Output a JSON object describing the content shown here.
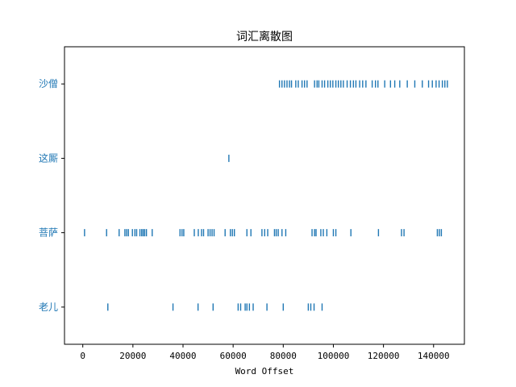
{
  "chart_data": {
    "type": "scatter",
    "title": "词汇离散图",
    "xlabel": "Word Offset",
    "ylabel": "",
    "xlim": [
      -7300,
      152300
    ],
    "ylim": [
      -0.5,
      3.5
    ],
    "xticks": [
      0,
      20000,
      40000,
      60000,
      80000,
      100000,
      120000,
      140000
    ],
    "xtick_labels": [
      "0",
      "20000",
      "40000",
      "60000",
      "80000",
      "100000",
      "120000",
      "140000"
    ],
    "grid": false,
    "marker": "|",
    "color": "#1f77b4",
    "series": [
      {
        "name": "沙僧",
        "level": 3,
        "x": [
          78500,
          79500,
          80500,
          81500,
          82500,
          83300,
          85000,
          86000,
          87500,
          88500,
          89500,
          92500,
          93500,
          94200,
          95500,
          96500,
          97800,
          98800,
          99800,
          101000,
          102000,
          103000,
          104000,
          105500,
          106800,
          108000,
          109000,
          110500,
          111700,
          113000,
          115500,
          116800,
          117800,
          120500,
          122800,
          124500,
          126500,
          129500,
          132500,
          135500,
          138000,
          139500,
          141000,
          142200,
          143500,
          144500,
          145500
        ]
      },
      {
        "name": "这厮",
        "level": 2,
        "x": [
          58300
        ]
      },
      {
        "name": "菩萨",
        "level": 1,
        "x": [
          700,
          9500,
          14500,
          16800,
          17500,
          18200,
          19800,
          20800,
          21500,
          22800,
          23500,
          24100,
          24700,
          25400,
          27700,
          38800,
          39600,
          40300,
          44500,
          46100,
          47400,
          48200,
          50000,
          50800,
          51600,
          52400,
          56800,
          58900,
          59700,
          60500,
          65500,
          67100,
          71500,
          72600,
          73800,
          76500,
          77200,
          78000,
          79500,
          81000,
          91500,
          92500,
          93100,
          95000,
          96000,
          97400,
          100000,
          101000,
          107000,
          118000,
          127200,
          128200,
          141500,
          142300,
          143100
        ]
      },
      {
        "name": "老儿",
        "level": 0,
        "x": [
          10000,
          36000,
          46000,
          52000,
          62000,
          63000,
          64800,
          65500,
          66500,
          68000,
          73500,
          80000,
          90000,
          91000,
          92300,
          95500
        ]
      }
    ]
  }
}
